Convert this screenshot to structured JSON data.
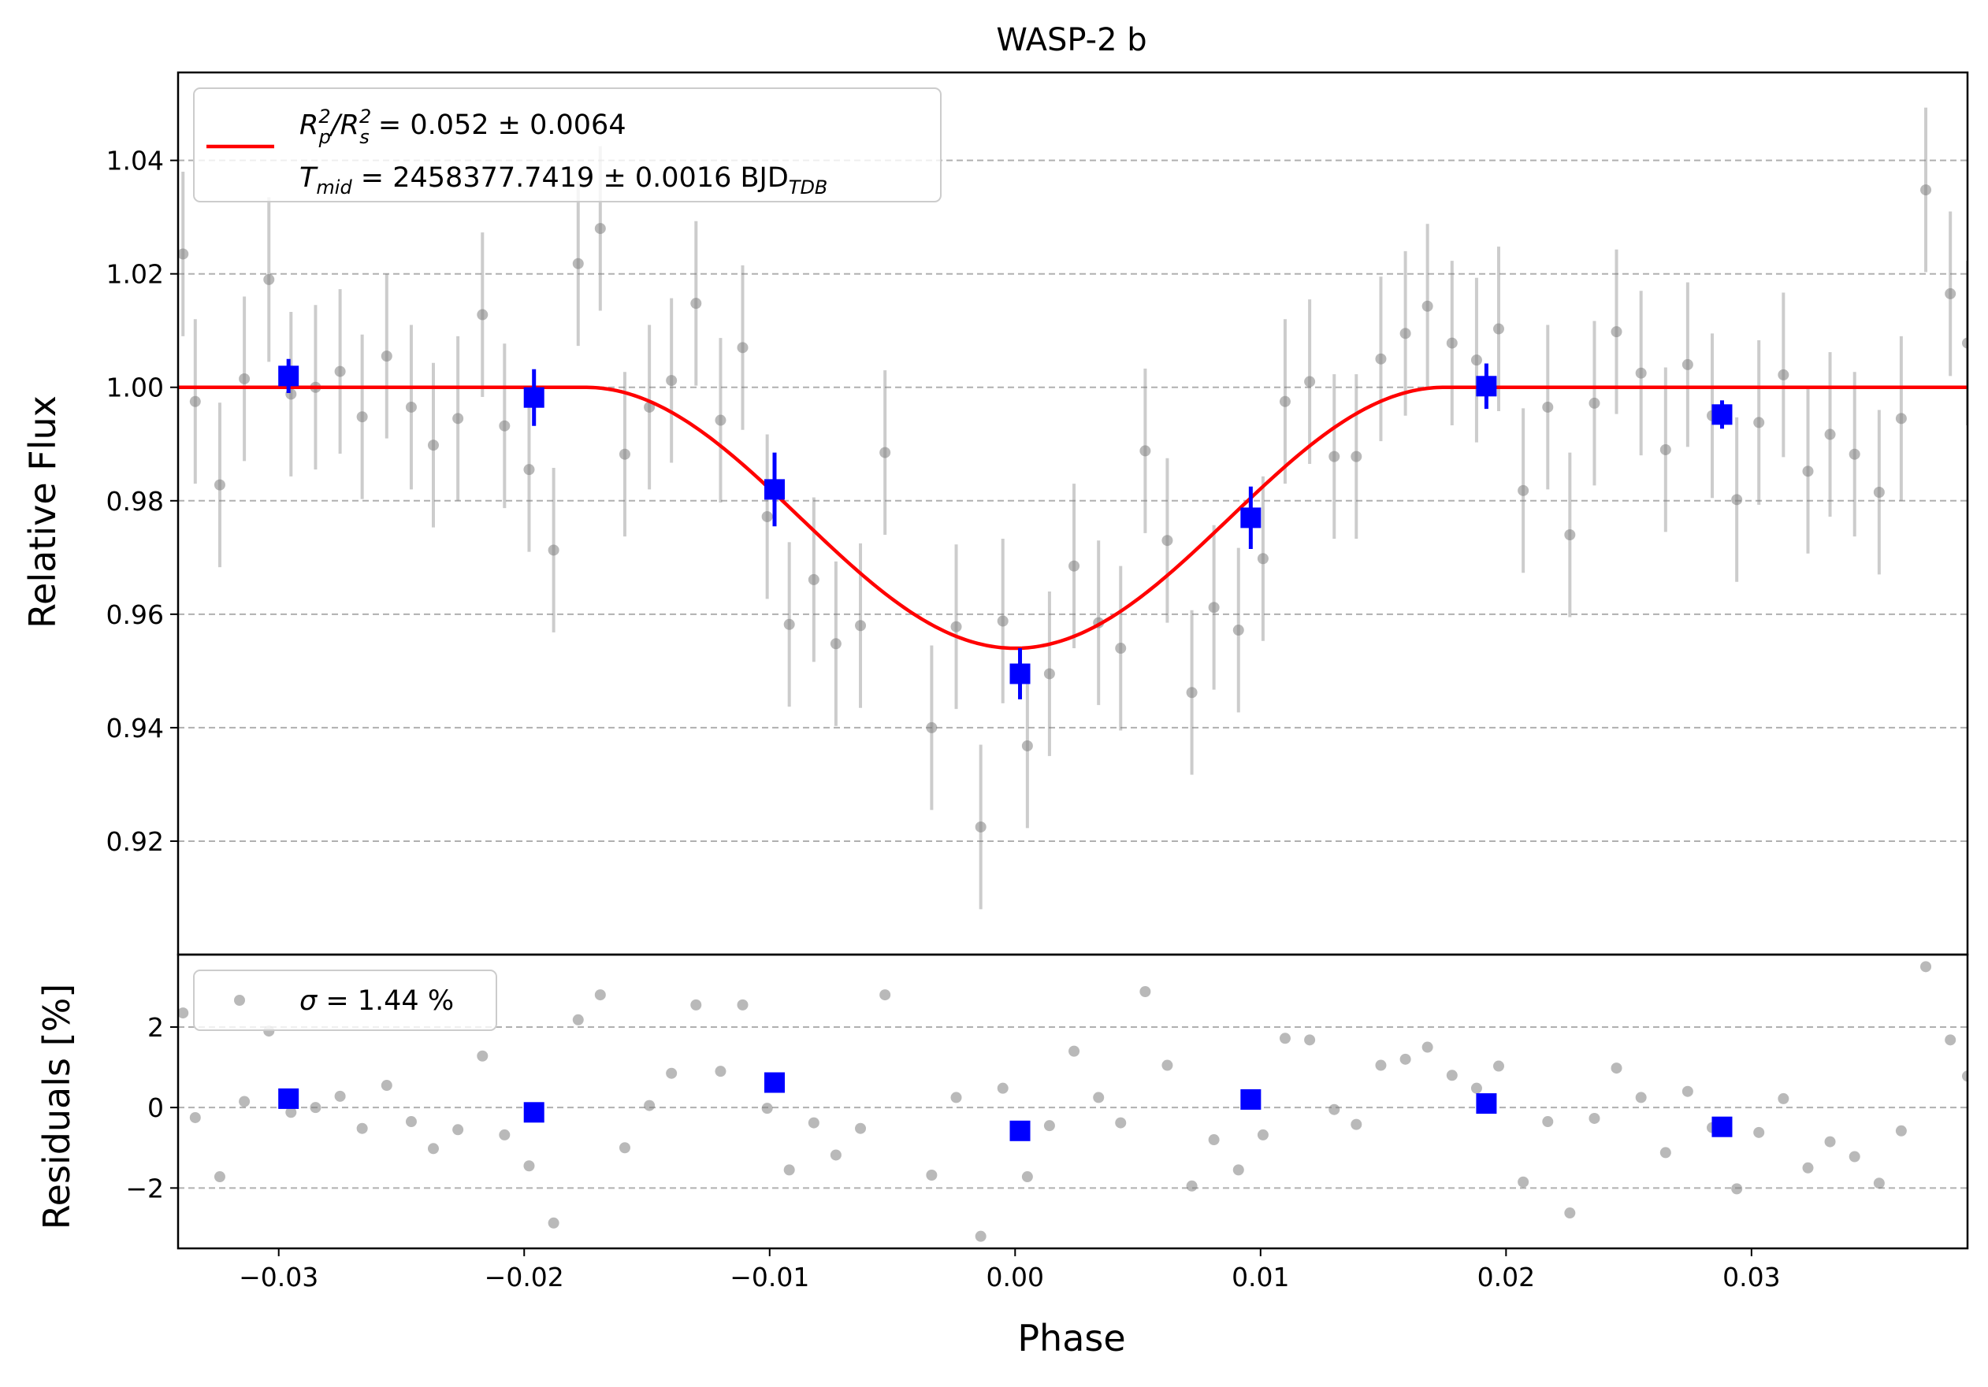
{
  "chart_data": [
    {
      "type": "scatter",
      "panel": "light curve",
      "title": "WASP-2 b",
      "xlabel": "",
      "ylabel": "Relative Flux",
      "xlim": [
        -0.0341,
        0.0388
      ],
      "ylim": [
        0.9,
        1.0555
      ],
      "y_ticks": [
        0.92,
        0.94,
        0.96,
        0.98,
        1.0,
        1.02,
        1.04
      ],
      "y_tick_labels": [
        "0.92",
        "0.94",
        "0.96",
        "0.98",
        "1.00",
        "1.02",
        "1.04"
      ],
      "grid": "y dashed",
      "legend": {
        "placement": "upper-left",
        "line1_sym": "R",
        "line1_sub": "p",
        "line1_sup": "2",
        "line1_sep": "/R",
        "line1_sub2": "s",
        "line1_sup2": "2",
        "line1_val": " = 0.052 ± 0.0064",
        "line2_sym": "T",
        "line2_sub": "mid",
        "line2_val": " = 2458377.7419 ± 0.0016 BJD",
        "line2_unit_sub": "TDB"
      },
      "colors": {
        "model": "#ff0000",
        "raw": "#808080",
        "binned": "#0000ff",
        "grid": "#b0b0b0"
      },
      "model": {
        "depth": 0.046,
        "t1": 0.0175,
        "x_min": -0.0341,
        "x_max": 0.0388
      },
      "raw_points": [
        [
          -0.0339,
          1.0235,
          0.0145
        ],
        [
          -0.0334,
          0.9975,
          0.0145
        ],
        [
          -0.0324,
          0.9828,
          0.0145
        ],
        [
          -0.0314,
          1.0015,
          0.0145
        ],
        [
          -0.0304,
          1.019,
          0.0145
        ],
        [
          -0.0295,
          0.9988,
          0.0145
        ],
        [
          -0.0285,
          1.0,
          0.0145
        ],
        [
          -0.0275,
          1.0028,
          0.0145
        ],
        [
          -0.0266,
          0.9948,
          0.0145
        ],
        [
          -0.0256,
          1.0055,
          0.0145
        ],
        [
          -0.0246,
          0.9965,
          0.0145
        ],
        [
          -0.0237,
          0.9898,
          0.0145
        ],
        [
          -0.0227,
          0.9945,
          0.0145
        ],
        [
          -0.0217,
          1.0128,
          0.0145
        ],
        [
          -0.0208,
          0.9932,
          0.0145
        ],
        [
          -0.0198,
          0.9855,
          0.0145
        ],
        [
          -0.0188,
          0.9713,
          0.0145
        ],
        [
          -0.0178,
          1.0218,
          0.0145
        ],
        [
          -0.0169,
          1.028,
          0.0145
        ],
        [
          -0.0159,
          0.9882,
          0.0145
        ],
        [
          -0.0149,
          0.9965,
          0.0145
        ],
        [
          -0.014,
          1.0012,
          0.0145
        ],
        [
          -0.013,
          1.0148,
          0.0145
        ],
        [
          -0.012,
          0.9942,
          0.0145
        ],
        [
          -0.0111,
          1.007,
          0.0145
        ],
        [
          -0.0101,
          0.9772,
          0.0145
        ],
        [
          -0.0092,
          0.9582,
          0.0145
        ],
        [
          -0.0082,
          0.9661,
          0.0145
        ],
        [
          -0.0073,
          0.9548,
          0.0145
        ],
        [
          -0.0063,
          0.958,
          0.0145
        ],
        [
          -0.0053,
          0.9885,
          0.0145
        ],
        [
          -0.0034,
          0.94,
          0.0145
        ],
        [
          -0.0024,
          0.9578,
          0.0145
        ],
        [
          -0.0014,
          0.9225,
          0.0145
        ],
        [
          -0.0005,
          0.9588,
          0.0145
        ],
        [
          0.0005,
          0.9368,
          0.0145
        ],
        [
          0.0014,
          0.9495,
          0.0145
        ],
        [
          0.0024,
          0.9685,
          0.0145
        ],
        [
          0.0034,
          0.9585,
          0.0145
        ],
        [
          0.0043,
          0.954,
          0.0145
        ],
        [
          0.0053,
          0.9888,
          0.0145
        ],
        [
          0.0062,
          0.973,
          0.0145
        ],
        [
          0.0072,
          0.9462,
          0.0145
        ],
        [
          0.0081,
          0.9612,
          0.0145
        ],
        [
          0.0091,
          0.9572,
          0.0145
        ],
        [
          0.0101,
          0.9698,
          0.0145
        ],
        [
          0.011,
          0.9975,
          0.0145
        ],
        [
          0.012,
          1.001,
          0.0145
        ],
        [
          0.013,
          0.9878,
          0.0145
        ],
        [
          0.0139,
          0.9878,
          0.0145
        ],
        [
          0.0149,
          1.005,
          0.0145
        ],
        [
          0.0159,
          1.0095,
          0.0145
        ],
        [
          0.0168,
          1.0143,
          0.0145
        ],
        [
          0.0178,
          1.0078,
          0.0145
        ],
        [
          0.0188,
          1.0048,
          0.0145
        ],
        [
          0.0197,
          1.0103,
          0.0145
        ],
        [
          0.0207,
          0.9818,
          0.0145
        ],
        [
          0.0217,
          0.9965,
          0.0145
        ],
        [
          0.0226,
          0.974,
          0.0145
        ],
        [
          0.0236,
          0.9972,
          0.0145
        ],
        [
          0.0245,
          1.0098,
          0.0145
        ],
        [
          0.0255,
          1.0025,
          0.0145
        ],
        [
          0.0265,
          0.989,
          0.0145
        ],
        [
          0.0274,
          1.004,
          0.0145
        ],
        [
          0.0284,
          0.995,
          0.0145
        ],
        [
          0.0294,
          0.9802,
          0.0145
        ],
        [
          0.0303,
          0.9938,
          0.0145
        ],
        [
          0.0313,
          1.0022,
          0.0145
        ],
        [
          0.0323,
          0.9852,
          0.0145
        ],
        [
          0.0332,
          0.9917,
          0.0145
        ],
        [
          0.0342,
          0.9882,
          0.0145
        ],
        [
          0.0352,
          0.9815,
          0.0145
        ],
        [
          0.0361,
          0.9945,
          0.0145
        ],
        [
          0.0371,
          1.0348,
          0.0145
        ],
        [
          0.0381,
          1.0165,
          0.0145
        ],
        [
          0.0388,
          1.0078,
          0.0145
        ]
      ],
      "binned_points": [
        [
          -0.0296,
          1.002,
          0.003
        ],
        [
          -0.0196,
          0.9982,
          0.005
        ],
        [
          -0.0098,
          0.982,
          0.0065
        ],
        [
          0.0002,
          0.9495,
          0.0045
        ],
        [
          0.0096,
          0.977,
          0.0055
        ],
        [
          0.0192,
          1.0002,
          0.004
        ],
        [
          0.0288,
          0.9952,
          0.0025
        ]
      ]
    },
    {
      "type": "scatter",
      "panel": "residuals",
      "xlabel": "Phase",
      "ylabel": "Residuals [%]",
      "xlim": [
        -0.0341,
        0.0388
      ],
      "ylim": [
        -3.5,
        3.8
      ],
      "y_ticks": [
        -2,
        0,
        2
      ],
      "y_tick_labels": [
        "−2",
        "0",
        "2"
      ],
      "x_ticks": [
        -0.03,
        -0.02,
        -0.01,
        0.0,
        0.01,
        0.02,
        0.03
      ],
      "x_tick_labels": [
        "−0.03",
        "−0.02",
        "−0.01",
        "0.00",
        "0.01",
        "0.02",
        "0.03"
      ],
      "grid": "y dashed",
      "legend": {
        "placement": "upper-left",
        "sym": "σ",
        "val": " = 1.44 %"
      },
      "raw_points": [
        [
          -0.0339,
          2.35
        ],
        [
          -0.0334,
          -0.25
        ],
        [
          -0.0324,
          -1.72
        ],
        [
          -0.0314,
          0.15
        ],
        [
          -0.0304,
          1.9
        ],
        [
          -0.0295,
          -0.12
        ],
        [
          -0.0285,
          0.0
        ],
        [
          -0.0275,
          0.28
        ],
        [
          -0.0266,
          -0.52
        ],
        [
          -0.0256,
          0.55
        ],
        [
          -0.0246,
          -0.35
        ],
        [
          -0.0237,
          -1.02
        ],
        [
          -0.0227,
          -0.55
        ],
        [
          -0.0217,
          1.28
        ],
        [
          -0.0208,
          -0.68
        ],
        [
          -0.0198,
          -1.45
        ],
        [
          -0.0188,
          -2.87
        ],
        [
          -0.0178,
          2.18
        ],
        [
          -0.0169,
          2.8
        ],
        [
          -0.0159,
          -1.0
        ],
        [
          -0.0149,
          0.05
        ],
        [
          -0.014,
          0.85
        ],
        [
          -0.013,
          2.55
        ],
        [
          -0.012,
          0.9
        ],
        [
          -0.0111,
          2.55
        ],
        [
          -0.0101,
          -0.02
        ],
        [
          -0.0092,
          -1.55
        ],
        [
          -0.0082,
          -0.38
        ],
        [
          -0.0073,
          -1.18
        ],
        [
          -0.0063,
          -0.52
        ],
        [
          -0.0053,
          2.8
        ],
        [
          -0.0034,
          -1.68
        ],
        [
          -0.0024,
          0.25
        ],
        [
          -0.0014,
          -3.2
        ],
        [
          -0.0005,
          0.48
        ],
        [
          0.0005,
          -1.72
        ],
        [
          0.0014,
          -0.45
        ],
        [
          0.0024,
          1.4
        ],
        [
          0.0034,
          0.25
        ],
        [
          0.0043,
          -0.38
        ],
        [
          0.0053,
          2.88
        ],
        [
          0.0062,
          1.05
        ],
        [
          0.0072,
          -1.95
        ],
        [
          0.0081,
          -0.8
        ],
        [
          0.0091,
          -1.55
        ],
        [
          0.0101,
          -0.68
        ],
        [
          0.011,
          1.72
        ],
        [
          0.012,
          1.68
        ],
        [
          0.013,
          -0.05
        ],
        [
          0.0139,
          -0.42
        ],
        [
          0.0149,
          1.05
        ],
        [
          0.0159,
          1.2
        ],
        [
          0.0168,
          1.5
        ],
        [
          0.0178,
          0.8
        ],
        [
          0.0188,
          0.48
        ],
        [
          0.0197,
          1.03
        ],
        [
          0.0207,
          -1.85
        ],
        [
          0.0217,
          -0.35
        ],
        [
          0.0226,
          -2.62
        ],
        [
          0.0236,
          -0.27
        ],
        [
          0.0245,
          0.98
        ],
        [
          0.0255,
          0.25
        ],
        [
          0.0265,
          -1.12
        ],
        [
          0.0274,
          0.4
        ],
        [
          0.0284,
          -0.5
        ],
        [
          0.0294,
          -2.02
        ],
        [
          0.0303,
          -0.62
        ],
        [
          0.0313,
          0.22
        ],
        [
          0.0323,
          -1.5
        ],
        [
          0.0332,
          -0.85
        ],
        [
          0.0342,
          -1.22
        ],
        [
          0.0352,
          -1.88
        ],
        [
          0.0361,
          -0.58
        ],
        [
          0.0371,
          3.5
        ],
        [
          0.0381,
          1.68
        ],
        [
          0.0388,
          0.78
        ]
      ],
      "binned_points": [
        [
          -0.0296,
          0.22
        ],
        [
          -0.0196,
          -0.12
        ],
        [
          -0.0098,
          0.62
        ],
        [
          0.0002,
          -0.58
        ],
        [
          0.0096,
          0.2
        ],
        [
          0.0192,
          0.1
        ],
        [
          0.0288,
          -0.48
        ]
      ]
    }
  ]
}
